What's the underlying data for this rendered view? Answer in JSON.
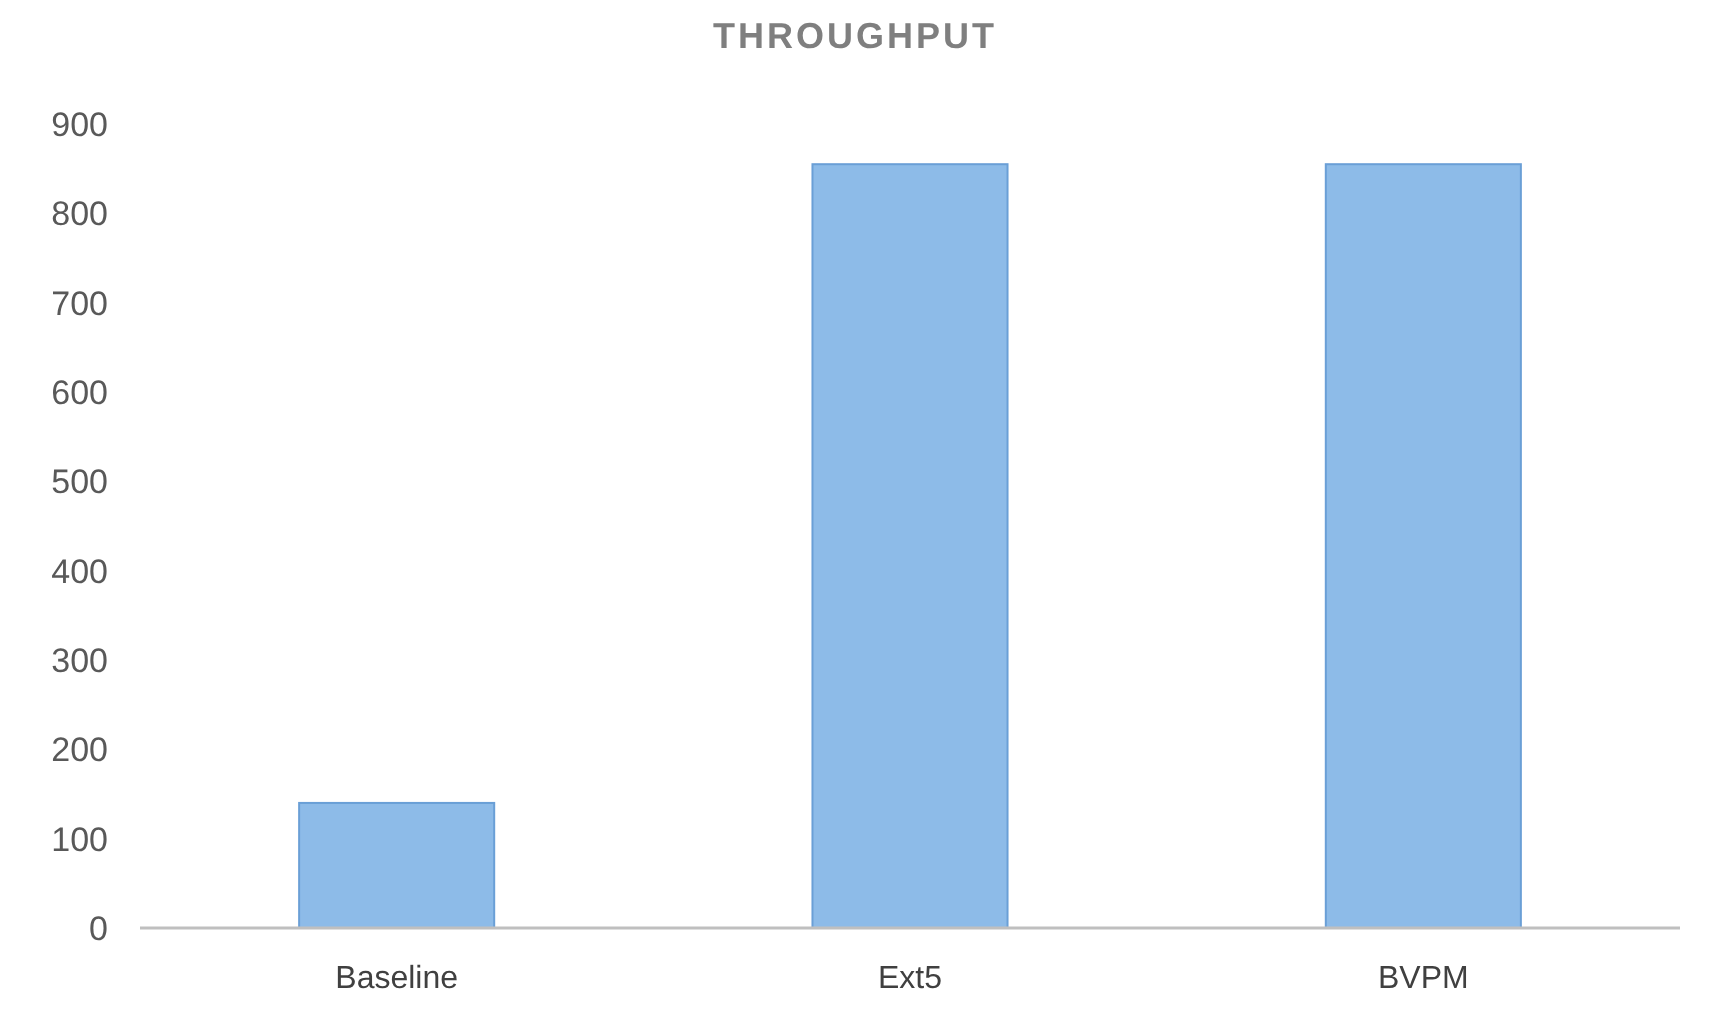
{
  "chart_data": {
    "type": "bar",
    "title": "THROUGHPUT",
    "categories": [
      "Baseline",
      "Ext5",
      "BVPM"
    ],
    "values": [
      140,
      855,
      855
    ],
    "color": "#8dbbe8",
    "ylim": [
      0,
      900
    ],
    "yticks": [
      0,
      100,
      200,
      300,
      400,
      500,
      600,
      700,
      800,
      900
    ],
    "grid": false
  }
}
